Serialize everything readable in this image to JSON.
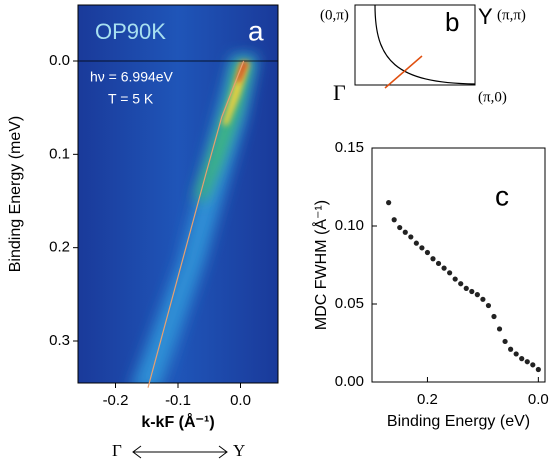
{
  "chart_data": [
    {
      "type": "line",
      "title": "OP90K",
      "panel": "a",
      "annotations": [
        "hν = 6.994eV",
        "T = 5 K"
      ],
      "xlabel": "k-kF (Å⁻¹)",
      "ylabel": "Binding Energy (meV)",
      "x": [
        0.005,
        -0.03,
        -0.055,
        -0.148
      ],
      "series": [
        {
          "color": "#e8a070",
          "values": [
            0,
            0.06,
            0.12,
            0.35
          ]
        }
      ],
      "xlim": [
        -0.26,
        0.06
      ],
      "ylim": [
        0.345,
        -0.06
      ],
      "xticks": [
        -0.2,
        -0.1,
        {
          "value": 0,
          "label": "0.0"
        }
      ],
      "yticks": [
        {
          "value": 0,
          "label": "0.0"
        },
        0.1,
        0.2,
        0.3
      ]
    },
    {
      "type": "scatter",
      "panel": "c",
      "xlabel": "Binding Energy (eV)",
      "ylabel": "MDC FWHM (Å⁻¹)",
      "x": [
        0.27,
        0.26,
        0.25,
        0.24,
        0.23,
        0.22,
        0.21,
        0.2,
        0.19,
        0.18,
        0.17,
        0.16,
        0.15,
        0.14,
        0.13,
        0.12,
        0.11,
        0.1,
        0.09,
        0.08,
        0.07,
        0.06,
        0.05,
        0.04,
        0.03,
        0.02,
        0.01,
        0
      ],
      "series": [
        {
          "color": "#222222",
          "values": [
            0.115,
            0.104,
            0.099,
            0.096,
            0.093,
            0.089,
            0.086,
            0.083,
            0.079,
            0.076,
            0.073,
            0.07,
            0.066,
            0.063,
            0.06,
            0.058,
            0.056,
            0.053,
            0.049,
            0.042,
            0.034,
            0.026,
            0.021,
            0.018,
            0.015,
            0.013,
            0.011,
            0.008
          ]
        }
      ],
      "xlim": [
        0.3,
        -0.012
      ],
      "ylim": [
        0,
        0.15
      ],
      "xticks": [
        0.2,
        {
          "value": 0,
          "label": "0.0"
        }
      ],
      "yticks": [
        {
          "value": 0,
          "label": "0.00"
        },
        {
          "value": 0.05,
          "label": "0.05"
        },
        {
          "value": 0.1,
          "label": "0.10"
        },
        {
          "value": 0.15,
          "label": "0.15"
        }
      ]
    }
  ],
  "diagram": {
    "panel": "b",
    "corner_tl": "(0,π)",
    "y_point": "Y",
    "corner_tr": "(π,π)",
    "gamma": "Γ",
    "corner_br": "(π,0)"
  },
  "direction": {
    "from": "Γ",
    "to": "Y"
  }
}
